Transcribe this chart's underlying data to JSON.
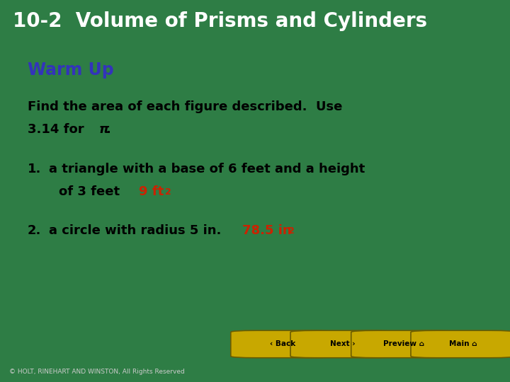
{
  "title": "10-2  Volume of Prisms and Cylinders",
  "title_bg": "#1a1a2e",
  "title_color": "#ffffff",
  "title_fontsize": 20,
  "slide_bg": "#ffffff",
  "outer_bg": "#2e7d45",
  "warm_up_label": "Warm Up",
  "warm_up_color": "#3333bb",
  "warm_up_fontsize": 17,
  "body_fontsize": 13,
  "answer_color": "#cc2200",
  "footer_text": "© HOLT, RINEHART AND WINSTON, All Rights Reserved",
  "footer_bg": "#111111",
  "footer_color": "#cccccc",
  "button_color": "#c8a800",
  "button_labels": [
    "‹ Back",
    "Next ›",
    "Preview ⌂",
    "Main ⌂"
  ],
  "nav_bg": "#2e7d45"
}
